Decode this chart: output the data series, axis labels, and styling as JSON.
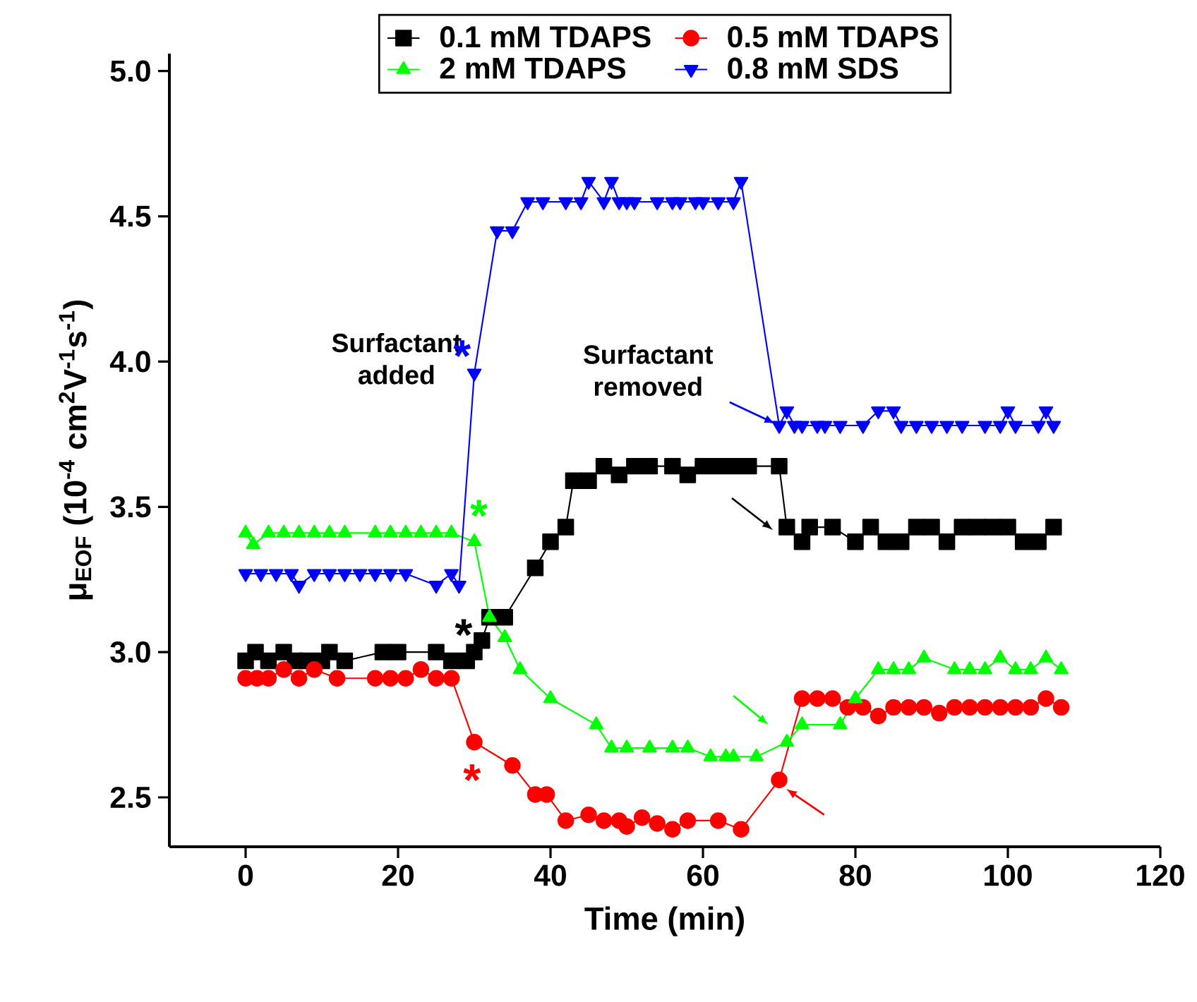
{
  "chart_data": {
    "type": "line",
    "xlabel": "Time (min)",
    "ylabel": "μ$_{EOF}$ (10$^{-4}$ cm$^{2}$V$^{-1}$s$^{-1}$)",
    "xlim": [
      -10,
      120
    ],
    "ylim": [
      2.33,
      5.06
    ],
    "xticks": [
      0,
      20,
      40,
      60,
      80,
      100,
      120
    ],
    "yticks": [
      {
        "value": 2.5,
        "label": "2.5"
      },
      {
        "value": 3.0,
        "label": "3.0"
      },
      {
        "value": 3.5,
        "label": "3.5"
      },
      {
        "value": 4.0,
        "label": "4.0"
      },
      {
        "value": 4.5,
        "label": "4.5"
      },
      {
        "value": 5.0,
        "label": "5.0"
      }
    ],
    "legend": "top",
    "grid": false,
    "line_style": "solid",
    "series": [
      {
        "name": "0.1 mM TDAPS",
        "color": "#000000",
        "marker": "square",
        "x": [
          0,
          1.3,
          3,
          5,
          6.5,
          8,
          10,
          11,
          13,
          18,
          20,
          25,
          27,
          29,
          30,
          31,
          32,
          34,
          38,
          40,
          42,
          43,
          45,
          47,
          49,
          51,
          53,
          56,
          58,
          60,
          62,
          64,
          66,
          70,
          71,
          73,
          74,
          77,
          80,
          82,
          84,
          86,
          88,
          90,
          92,
          94,
          96,
          98,
          100,
          102,
          104,
          106
        ],
        "values": [
          2.97,
          3.0,
          2.97,
          3.0,
          2.97,
          2.97,
          2.97,
          3.0,
          2.97,
          3.0,
          3.0,
          3.0,
          2.97,
          2.97,
          3.0,
          3.04,
          3.12,
          3.12,
          3.29,
          3.38,
          3.43,
          3.59,
          3.59,
          3.64,
          3.61,
          3.64,
          3.64,
          3.64,
          3.61,
          3.64,
          3.64,
          3.64,
          3.64,
          3.64,
          3.43,
          3.38,
          3.43,
          3.43,
          3.38,
          3.43,
          3.38,
          3.38,
          3.43,
          3.43,
          3.38,
          3.43,
          3.43,
          3.43,
          3.43,
          3.38,
          3.38,
          3.43
        ]
      },
      {
        "name": "0.5 mM TDAPS",
        "color": "#ff0000",
        "marker": "circle",
        "x": [
          0,
          1.5,
          3,
          5,
          7,
          9,
          12,
          17,
          19,
          21,
          23,
          25,
          27,
          30,
          35,
          38,
          39.5,
          42,
          45,
          47,
          49,
          50,
          52,
          54,
          56,
          58,
          62,
          65,
          70,
          73,
          75,
          77,
          79,
          81,
          83,
          85,
          87,
          89,
          91,
          93,
          95,
          97,
          99,
          101,
          103,
          105,
          107
        ],
        "values": [
          2.91,
          2.91,
          2.91,
          2.94,
          2.91,
          2.94,
          2.91,
          2.91,
          2.91,
          2.91,
          2.94,
          2.91,
          2.91,
          2.69,
          2.61,
          2.51,
          2.51,
          2.42,
          2.44,
          2.42,
          2.42,
          2.4,
          2.43,
          2.41,
          2.39,
          2.42,
          2.42,
          2.39,
          2.56,
          2.84,
          2.84,
          2.84,
          2.81,
          2.81,
          2.78,
          2.81,
          2.81,
          2.81,
          2.79,
          2.81,
          2.81,
          2.81,
          2.81,
          2.81,
          2.81,
          2.84,
          2.81
        ]
      },
      {
        "name": "2 mM TDAPS",
        "color": "#00ff00",
        "marker": "triangle",
        "x": [
          0,
          1,
          3,
          5,
          7,
          9,
          11,
          13,
          17,
          19,
          21,
          23,
          25,
          27,
          30,
          32,
          34,
          36,
          40,
          46,
          48,
          50,
          53,
          56,
          58,
          61,
          63,
          64,
          67,
          71,
          73,
          78,
          80,
          83,
          85,
          87,
          89,
          93,
          95,
          97,
          99,
          101,
          103,
          105,
          107
        ],
        "values": [
          3.41,
          3.37,
          3.41,
          3.41,
          3.41,
          3.41,
          3.41,
          3.41,
          3.41,
          3.41,
          3.41,
          3.41,
          3.41,
          3.41,
          3.38,
          3.12,
          3.05,
          2.94,
          2.84,
          2.75,
          2.67,
          2.67,
          2.67,
          2.67,
          2.67,
          2.64,
          2.64,
          2.64,
          2.64,
          2.69,
          2.75,
          2.75,
          2.84,
          2.94,
          2.94,
          2.94,
          2.98,
          2.94,
          2.94,
          2.94,
          2.98,
          2.94,
          2.94,
          2.98,
          2.94
        ]
      },
      {
        "name": "0.8 mM SDS",
        "color": "#0000ff",
        "marker": "triangle down",
        "x": [
          0,
          2,
          4,
          6,
          7,
          9,
          11,
          13,
          15,
          17,
          19,
          21,
          25,
          27,
          28,
          30,
          33,
          35,
          37,
          39,
          42,
          44,
          45,
          47,
          48,
          49,
          50,
          51,
          54,
          56,
          57,
          59,
          60,
          62,
          64,
          65,
          70,
          71,
          72,
          73,
          75,
          76,
          78,
          81,
          83,
          85,
          86,
          88,
          90,
          92,
          94,
          97,
          99,
          100,
          101,
          104,
          105,
          106
        ],
        "values": [
          3.27,
          3.27,
          3.27,
          3.27,
          3.23,
          3.27,
          3.27,
          3.27,
          3.27,
          3.27,
          3.27,
          3.27,
          3.23,
          3.27,
          3.23,
          3.96,
          4.45,
          4.45,
          4.55,
          4.55,
          4.55,
          4.55,
          4.62,
          4.55,
          4.62,
          4.55,
          4.55,
          4.55,
          4.55,
          4.55,
          4.55,
          4.55,
          4.55,
          4.55,
          4.55,
          4.62,
          3.78,
          3.83,
          3.78,
          3.78,
          3.78,
          3.78,
          3.78,
          3.78,
          3.83,
          3.83,
          3.78,
          3.78,
          3.78,
          3.78,
          3.78,
          3.78,
          3.78,
          3.83,
          3.78,
          3.78,
          3.83,
          3.78
        ]
      }
    ],
    "annotations": [
      "Surfactant added",
      {
        "text": "Surfactant removed",
        "x": 70,
        "y": 3.78
      },
      "*",
      "*",
      "*",
      "*"
    ]
  }
}
